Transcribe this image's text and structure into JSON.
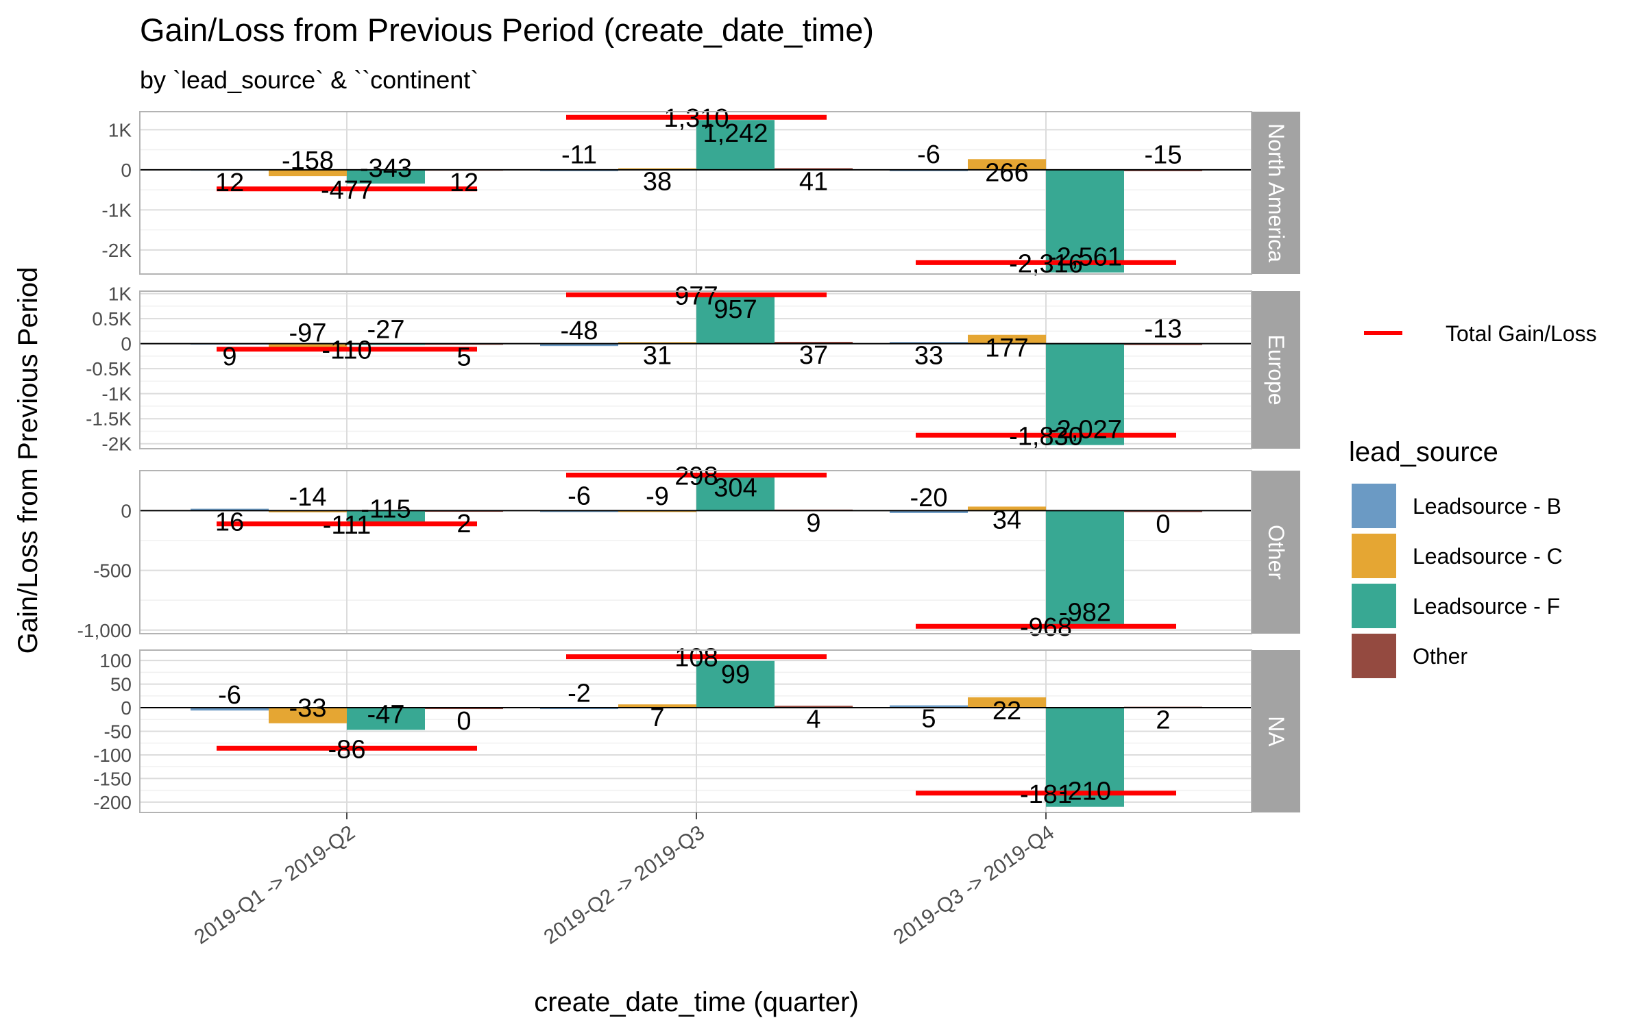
{
  "chart_data": {
    "type": "bar",
    "title": "Gain/Loss  from Previous Period (create_date_time)",
    "subtitle": "by `lead_source` & ``continent`",
    "xlabel": "create_date_time (quarter)",
    "ylabel": "Gain/Loss  from Previous Period",
    "categories": [
      "2019-Q1 -> 2019-Q2",
      "2019-Q2 -> 2019-Q3",
      "2019-Q3 -> 2019-Q4"
    ],
    "legend": {
      "position": "right",
      "total_label": "Total Gain/Loss",
      "fill_title": "lead_source",
      "items": [
        {
          "name": "Leadsource - B",
          "color": "#6b9ac4"
        },
        {
          "name": "Leadsource - C",
          "color": "#e5a633"
        },
        {
          "name": "Leadsource - F",
          "color": "#38a893"
        },
        {
          "name": "Other",
          "color": "#944a40"
        }
      ]
    },
    "total_color": "#ff0000",
    "grid": true,
    "panels": [
      {
        "facet": "North America",
        "ylim": [
          -2600,
          1450
        ],
        "ticks": [
          1000,
          0,
          -1000,
          -2000
        ],
        "tick_labels": [
          "1K",
          "0",
          "-1K",
          "-2K"
        ],
        "series": [
          {
            "name": "Leadsource - B",
            "values": [
              12,
              -11,
              -6
            ],
            "labels": [
              "12",
              "-11",
              "-6"
            ]
          },
          {
            "name": "Leadsource - C",
            "values": [
              -158,
              38,
              266
            ],
            "labels": [
              "-158",
              "38",
              "266"
            ]
          },
          {
            "name": "Leadsource - F",
            "values": [
              -343,
              1242,
              -2561
            ],
            "labels": [
              "-343",
              "1,242",
              "-2,561"
            ]
          },
          {
            "name": "Other",
            "values": [
              12,
              41,
              -15
            ],
            "labels": [
              "12",
              "41",
              "-15"
            ]
          }
        ],
        "totals": [
          -477,
          1310,
          -2316
        ],
        "total_labels": [
          "-477",
          "1,310",
          "-2,316"
        ]
      },
      {
        "facet": "Europe",
        "ylim": [
          -2100,
          1050
        ],
        "ticks": [
          1000,
          500,
          0,
          -500,
          -1000,
          -1500,
          -2000
        ],
        "tick_labels": [
          "1K",
          "0.5K",
          "0",
          "-0.5K",
          "-1K",
          "-1.5K",
          "-2K"
        ],
        "series": [
          {
            "name": "Leadsource - B",
            "values": [
              9,
              -48,
              33
            ],
            "labels": [
              "9",
              "-48",
              "33"
            ]
          },
          {
            "name": "Leadsource - C",
            "values": [
              -97,
              31,
              177
            ],
            "labels": [
              "-97",
              "31",
              "177"
            ]
          },
          {
            "name": "Leadsource - F",
            "values": [
              -27,
              957,
              -2027
            ],
            "labels": [
              "-27",
              "957",
              "-2,027"
            ]
          },
          {
            "name": "Other",
            "values": [
              5,
              37,
              -13
            ],
            "labels": [
              "5",
              "37",
              "-13"
            ]
          }
        ],
        "totals": [
          -110,
          977,
          -1830
        ],
        "total_labels": [
          "-110",
          "977",
          "-1,830"
        ]
      },
      {
        "facet": "Other",
        "ylim": [
          -1030,
          335
        ],
        "ticks": [
          0,
          -500,
          -1000
        ],
        "tick_labels": [
          "0",
          "-500",
          "-1,000"
        ],
        "series": [
          {
            "name": "Leadsource - B",
            "values": [
              16,
              -6,
              -20
            ],
            "labels": [
              "16",
              "-6",
              "-20"
            ]
          },
          {
            "name": "Leadsource - C",
            "values": [
              -14,
              -9,
              34
            ],
            "labels": [
              "-14",
              "-9",
              "34"
            ]
          },
          {
            "name": "Leadsource - F",
            "values": [
              -115,
              304,
              -982
            ],
            "labels": [
              "-115",
              "304",
              "-982"
            ]
          },
          {
            "name": "Other",
            "values": [
              2,
              9,
              0
            ],
            "labels": [
              "2",
              "9",
              "0"
            ]
          }
        ],
        "totals": [
          -111,
          298,
          -968
        ],
        "total_labels": [
          "-111",
          "298",
          "-968"
        ]
      },
      {
        "facet": "NA",
        "ylim": [
          -222,
          122
        ],
        "ticks": [
          100,
          50,
          0,
          -50,
          -100,
          -150,
          -200
        ],
        "tick_labels": [
          "100",
          "50",
          "0",
          "-50",
          "-100",
          "-150",
          "-200"
        ],
        "series": [
          {
            "name": "Leadsource - B",
            "values": [
              -6,
              -2,
              5
            ],
            "labels": [
              "-6",
              "-2",
              "5"
            ]
          },
          {
            "name": "Leadsource - C",
            "values": [
              -33,
              7,
              22
            ],
            "labels": [
              "-33",
              "7",
              "22"
            ]
          },
          {
            "name": "Leadsource - F",
            "values": [
              -47,
              99,
              -210
            ],
            "labels": [
              "-47",
              "99",
              "-210"
            ]
          },
          {
            "name": "Other",
            "values": [
              0,
              4,
              2
            ],
            "labels": [
              "0",
              "4",
              "2"
            ]
          }
        ],
        "totals": [
          -86,
          108,
          -181
        ],
        "total_labels": [
          "-86",
          "108",
          "-181"
        ]
      }
    ]
  }
}
